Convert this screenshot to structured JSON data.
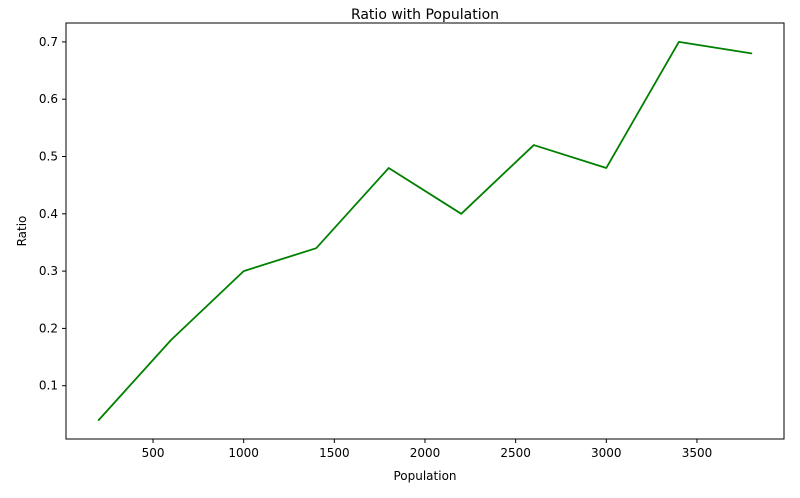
{
  "chart_data": {
    "type": "line",
    "title": "Ratio with Population",
    "xlabel": "Population",
    "ylabel": "Ratio",
    "xlim": [
      20,
      3980
    ],
    "ylim": [
      0.007,
      0.733
    ],
    "xticks": [
      500,
      1000,
      1500,
      2000,
      2500,
      3000,
      3500
    ],
    "yticks": [
      0.1,
      0.2,
      0.3,
      0.4,
      0.5,
      0.6,
      0.7
    ],
    "grid": false,
    "series": [
      {
        "color": "#008000",
        "x": [
          200,
          600,
          1000,
          1400,
          1800,
          2200,
          2600,
          3000,
          3400,
          3800
        ],
        "y": [
          0.04,
          0.18,
          0.3,
          0.34,
          0.48,
          0.4,
          0.52,
          0.48,
          0.7,
          0.68
        ]
      }
    ]
  }
}
